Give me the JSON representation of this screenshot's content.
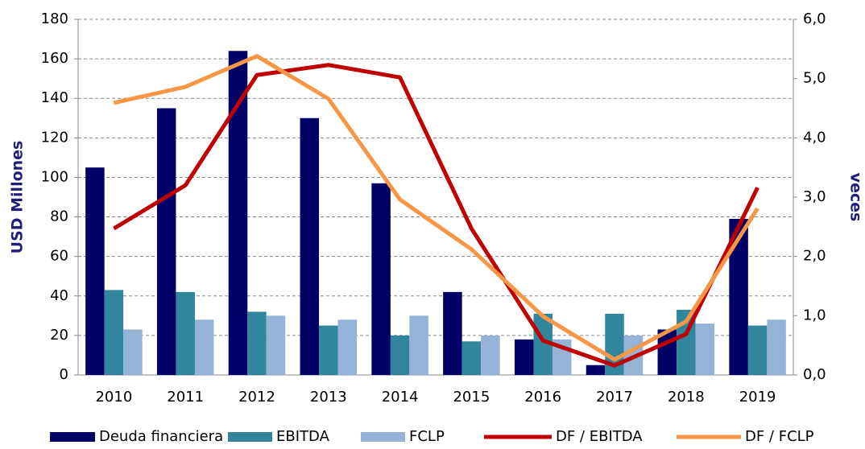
{
  "chart_data": {
    "type": "bar_line",
    "categories": [
      "2010",
      "2011",
      "2012",
      "2013",
      "2014",
      "2015",
      "2016",
      "2017",
      "2018",
      "2019"
    ],
    "series": [
      {
        "name": "Deuda financiera",
        "color": "#000066",
        "kind": "bar",
        "values": [
          105,
          135,
          164,
          130,
          97,
          42,
          18,
          5,
          23,
          79
        ]
      },
      {
        "name": "EBITDA",
        "color": "#31859c",
        "kind": "bar",
        "values": [
          43,
          42,
          32,
          25,
          20,
          17,
          31,
          31,
          33,
          25
        ]
      },
      {
        "name": "FCLP",
        "color": "#95b3d7",
        "kind": "bar",
        "values": [
          23,
          28,
          30,
          28,
          30,
          20,
          18,
          20,
          26,
          28
        ]
      },
      {
        "name": "DF / EBITDA",
        "color": "#c00000",
        "kind": "line",
        "axis": "y2",
        "values": [
          2.47,
          3.2,
          5.06,
          5.23,
          5.02,
          2.47,
          0.58,
          0.16,
          0.69,
          3.16
        ]
      },
      {
        "name": "DF / FCLP",
        "color": "#f79646",
        "kind": "line",
        "axis": "y2",
        "values": [
          4.59,
          4.86,
          5.38,
          4.66,
          2.96,
          2.12,
          0.99,
          0.26,
          0.9,
          2.81
        ]
      }
    ],
    "ylabel": "USD Millones",
    "y2label": "veces",
    "ylim": [
      0,
      180
    ],
    "yticks": [
      0,
      20,
      40,
      60,
      80,
      100,
      120,
      140,
      160,
      180
    ],
    "y2lim": [
      0,
      6
    ],
    "y2ticks": [
      {
        "value": 0,
        "label": "0,0"
      },
      {
        "value": 1,
        "label": "1,0"
      },
      {
        "value": 2,
        "label": "2,0"
      },
      {
        "value": 3,
        "label": "3,0"
      },
      {
        "value": 4,
        "label": "4,0"
      },
      {
        "value": 5,
        "label": "5,0"
      },
      {
        "value": 6,
        "label": "6,0"
      }
    ],
    "grid": true,
    "legend": "bottom"
  }
}
